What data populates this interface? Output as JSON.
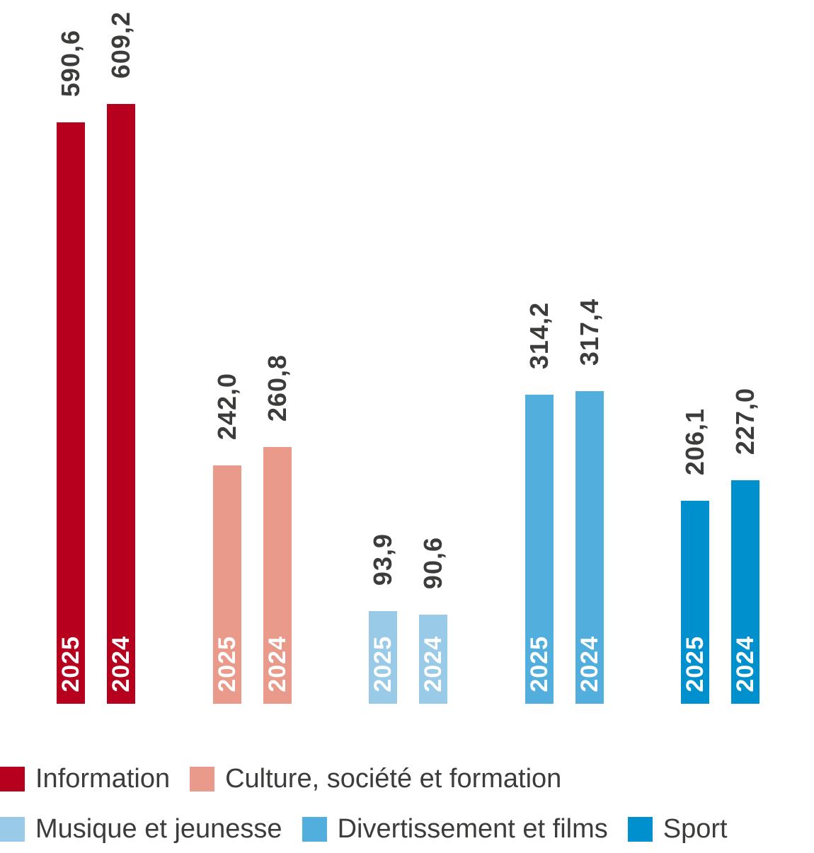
{
  "chart_data": {
    "type": "bar",
    "title": "",
    "categories": [
      "Information",
      "Culture, société et formation",
      "Musique et jeunesse",
      "Divertissement et films",
      "Sport"
    ],
    "category_colors": [
      "#b6001e",
      "#e99a8a",
      "#99cbe9",
      "#52aedd",
      "#0090ce"
    ],
    "series": [
      {
        "name": "2025",
        "values": [
          590.6,
          242.0,
          93.9,
          314.2,
          206.1
        ],
        "value_labels": [
          "590,6",
          "242,0",
          "93,9",
          "314,2",
          "206,1"
        ]
      },
      {
        "name": "2024",
        "values": [
          609.2,
          260.8,
          90.6,
          317.4,
          227.0
        ],
        "value_labels": [
          "609,2",
          "260,8",
          "90,6",
          "317,4",
          "227,0"
        ]
      }
    ],
    "ylim": [
      0,
      640
    ],
    "grid": false,
    "axes_visible": false,
    "value_label_color": "#3c3c3b",
    "bar_year_label_color": "#ffffff",
    "legend_position": "bottom",
    "legend_rows": [
      [
        0,
        1
      ],
      [
        2,
        3,
        4
      ]
    ]
  }
}
